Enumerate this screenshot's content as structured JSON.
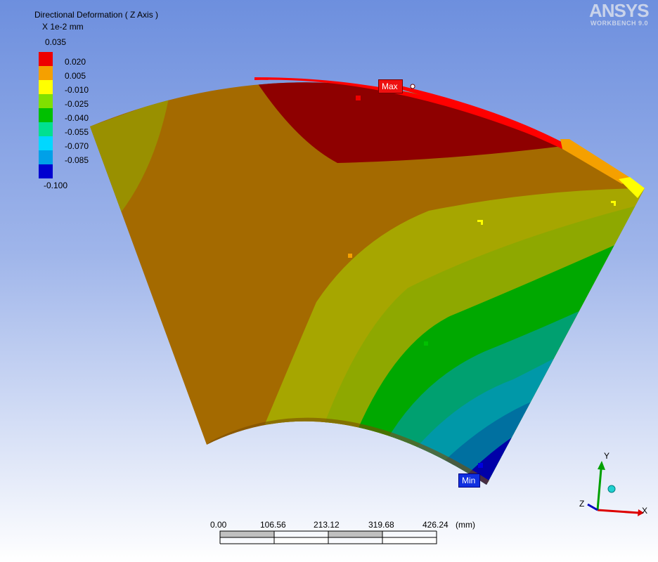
{
  "legend": {
    "title": "Directional Deformation ( Z Axis )",
    "unit": "X 1e-2 mm",
    "top_value": "0.035",
    "bottom_value": "-0.100",
    "bands": [
      {
        "label": "0.020",
        "color": "#ee0000"
      },
      {
        "label": "0.005",
        "color": "#f5a000"
      },
      {
        "label": "-0.010",
        "color": "#ffff00"
      },
      {
        "label": "-0.025",
        "color": "#80e000"
      },
      {
        "label": "-0.040",
        "color": "#00c000"
      },
      {
        "label": "-0.055",
        "color": "#00e090"
      },
      {
        "label": "-0.070",
        "color": "#00d8ff"
      },
      {
        "label": "-0.085",
        "color": "#00a0e8"
      },
      {
        "label": "",
        "color": "#0000d0"
      }
    ]
  },
  "logo": {
    "brand": "ANSYS",
    "product": "WORKBENCH 9.0"
  },
  "probes": {
    "max": "Max",
    "min": "Min"
  },
  "scale_bar": {
    "ticks": [
      "0.00",
      "106.56",
      "213.12",
      "319.68",
      "426.24"
    ],
    "unit": "(mm)"
  },
  "triad": {
    "x": "X",
    "y": "Y",
    "z": "Z"
  },
  "colors": {
    "red": "#8e0000",
    "orange": "#a06700",
    "olive": "#9a9600",
    "green": "#00aa00",
    "teal": "#00a8a0",
    "blue": "#0000a8"
  }
}
